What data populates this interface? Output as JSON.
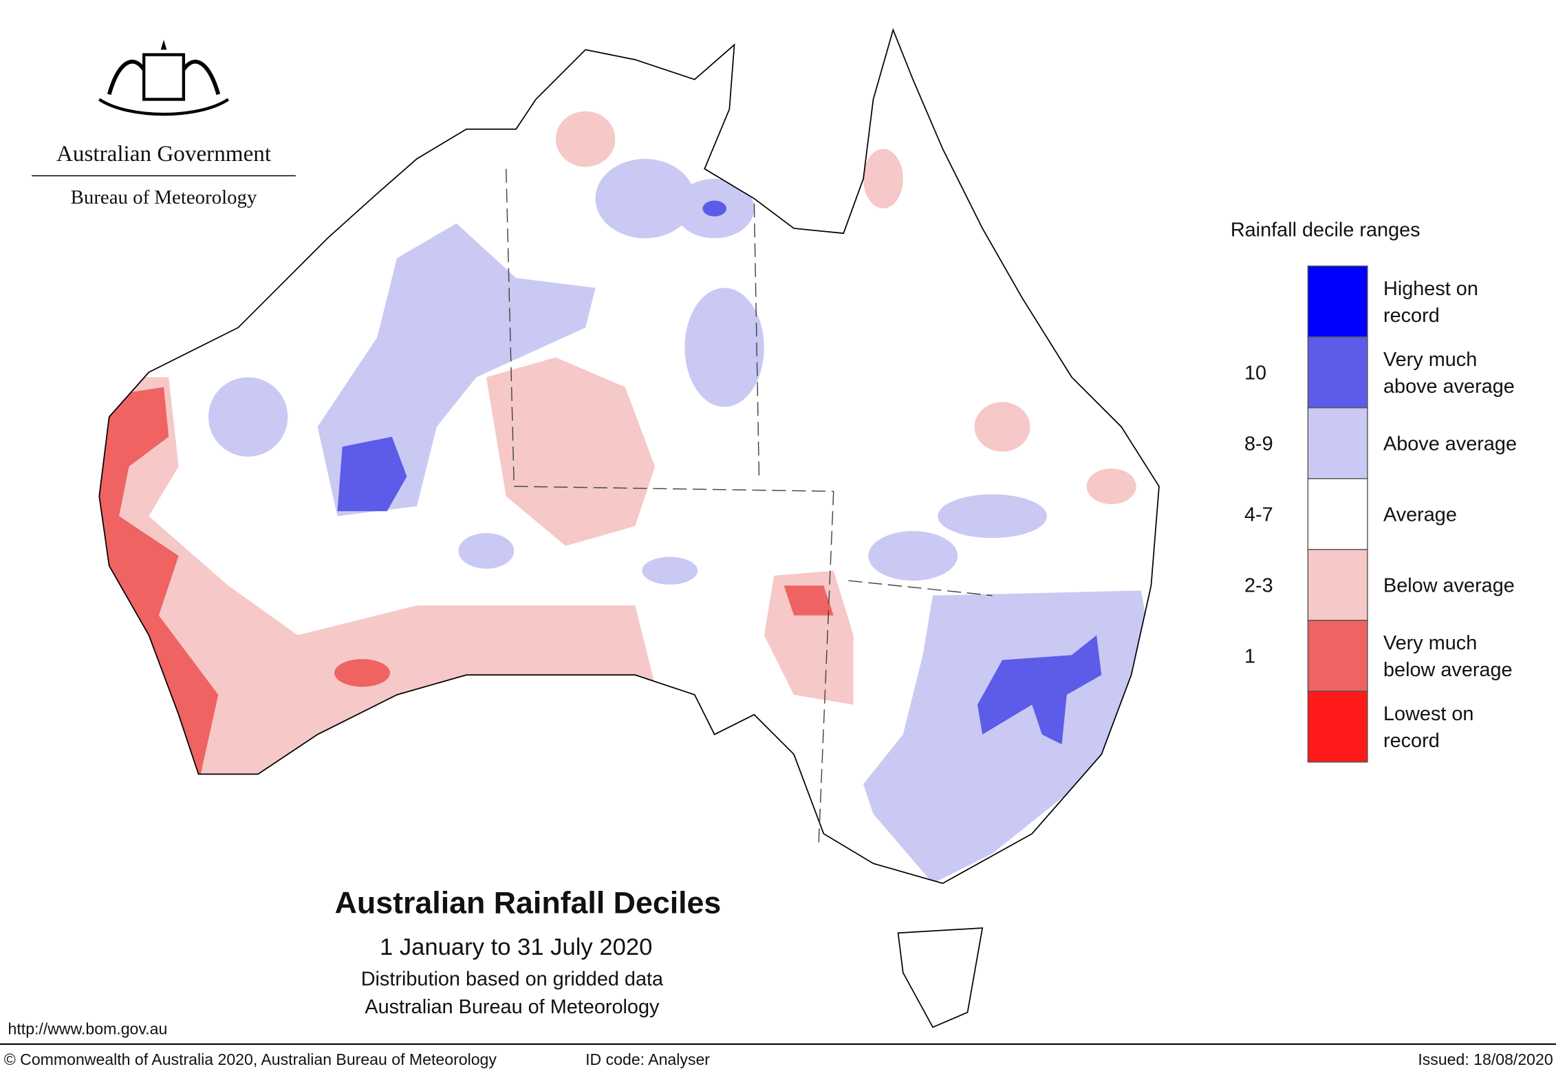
{
  "header": {
    "government": "Australian Government",
    "agency": "Bureau of Meteorology"
  },
  "legend": {
    "title": "Rainfall decile ranges",
    "items": [
      {
        "label": [
          "Highest on",
          "record"
        ],
        "color": "#0000ff"
      },
      {
        "decile": "10",
        "label": [
          "Very much",
          "above average"
        ],
        "color": "#5c5ce8"
      },
      {
        "decile": "8-9",
        "label": [
          "Above average"
        ],
        "color": "#c9c9f4"
      },
      {
        "decile": "4-7",
        "label": [
          "Average"
        ],
        "color": "#ffffff"
      },
      {
        "decile": "2-3",
        "label": [
          "Below average"
        ],
        "color": "#f6c8c8"
      },
      {
        "decile": "1",
        "label": [
          "Very much",
          "below average"
        ],
        "color": "#ef6363"
      },
      {
        "label": [
          "Lowest on",
          "record"
        ],
        "color": "#ff1a1a"
      }
    ]
  },
  "title": "Australian Rainfall Deciles",
  "subtitle": "1 January to 31 July 2020",
  "notes": [
    "Distribution based on gridded data",
    "Australian Bureau of Meteorology"
  ],
  "url": "http://www.bom.gov.au",
  "footer": {
    "copyright": "© Commonwealth of Australia 2020, Australian Bureau of Meteorology",
    "id_code": "ID code: Analyser",
    "issued": "Issued: 18/08/2020"
  }
}
